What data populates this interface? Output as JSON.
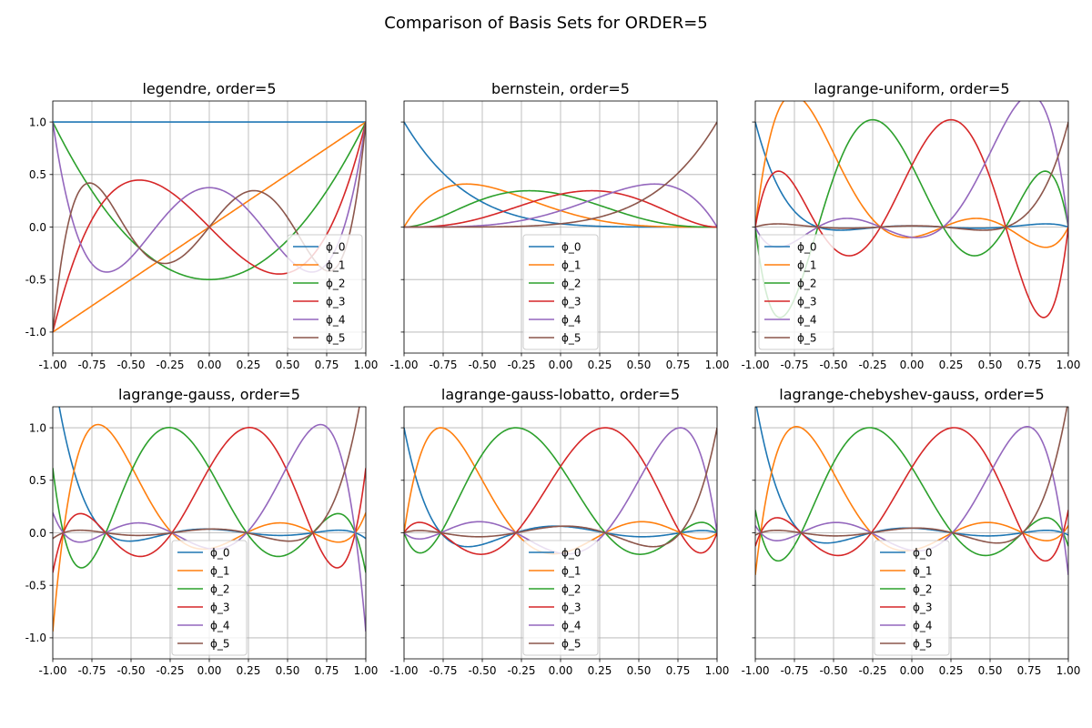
{
  "figure": {
    "suptitle": "Comparison of Basis Sets for ORDER=5"
  },
  "colors": [
    "#1f77b4",
    "#ff7f0e",
    "#2ca02c",
    "#d62728",
    "#9467bd",
    "#8c564b"
  ],
  "chart_data": [
    {
      "type": "line",
      "title": "legendre, order=5",
      "basis": "legendre",
      "xlim": [
        -1,
        1
      ],
      "ylim": [
        -1.2,
        1.2
      ],
      "xticks": [
        "-1.00",
        "-0.75",
        "-0.50",
        "-0.25",
        "0.00",
        "0.25",
        "0.50",
        "0.75",
        "1.00"
      ],
      "yticks": [
        "-1.0",
        "-0.5",
        "0.0",
        "0.5",
        "1.0"
      ],
      "show_yticklabels": true,
      "grid": true,
      "legend": "lower-right",
      "series_names": [
        "ϕ_0",
        "ϕ_1",
        "ϕ_2",
        "ϕ_3",
        "ϕ_4",
        "ϕ_5"
      ]
    },
    {
      "type": "line",
      "title": "bernstein, order=5",
      "basis": "bernstein",
      "xlim": [
        -1,
        1
      ],
      "ylim": [
        -1.2,
        1.2
      ],
      "xticks": [
        "-1.00",
        "-0.75",
        "-0.50",
        "-0.25",
        "0.00",
        "0.25",
        "0.50",
        "0.75",
        "1.00"
      ],
      "yticks": [
        "-1.0",
        "-0.5",
        "0.0",
        "0.5",
        "1.0"
      ],
      "show_yticklabels": false,
      "grid": true,
      "legend": "lower-center",
      "series_names": [
        "ϕ_0",
        "ϕ_1",
        "ϕ_2",
        "ϕ_3",
        "ϕ_4",
        "ϕ_5"
      ]
    },
    {
      "type": "line",
      "title": "lagrange-uniform, order=5",
      "basis": "lagrange",
      "nodes": [
        -1,
        -0.6,
        -0.2,
        0.2,
        0.6,
        1
      ],
      "xlim": [
        -1,
        1
      ],
      "ylim": [
        -1.2,
        1.2
      ],
      "xticks": [
        "-1.00",
        "-0.75",
        "-0.50",
        "-0.25",
        "0.00",
        "0.25",
        "0.50",
        "0.75",
        "1.00"
      ],
      "yticks": [
        "-1.0",
        "-0.5",
        "0.0",
        "0.5",
        "1.0"
      ],
      "show_yticklabels": false,
      "grid": true,
      "legend": "lower-left",
      "series_names": [
        "ϕ_0",
        "ϕ_1",
        "ϕ_2",
        "ϕ_3",
        "ϕ_4",
        "ϕ_5"
      ]
    },
    {
      "type": "line",
      "title": "lagrange-gauss, order=5",
      "basis": "lagrange",
      "nodes": [
        -0.93247,
        -0.66121,
        -0.23862,
        0.23862,
        0.66121,
        0.93247
      ],
      "xlim": [
        -1,
        1
      ],
      "ylim": [
        -1.2,
        1.2
      ],
      "xticks": [
        "-1.00",
        "-0.75",
        "-0.50",
        "-0.25",
        "0.00",
        "0.25",
        "0.50",
        "0.75",
        "1.00"
      ],
      "yticks": [
        "-1.0",
        "-0.5",
        "0.0",
        "0.5",
        "1.0"
      ],
      "show_yticklabels": true,
      "grid": true,
      "legend": "lower-center",
      "series_names": [
        "ϕ_0",
        "ϕ_1",
        "ϕ_2",
        "ϕ_3",
        "ϕ_4",
        "ϕ_5"
      ]
    },
    {
      "type": "line",
      "title": "lagrange-gauss-lobatto, order=5",
      "basis": "lagrange",
      "nodes": [
        -1,
        -0.76505,
        -0.28523,
        0.28523,
        0.76505,
        1
      ],
      "xlim": [
        -1,
        1
      ],
      "ylim": [
        -1.2,
        1.2
      ],
      "xticks": [
        "-1.00",
        "-0.75",
        "-0.50",
        "-0.25",
        "0.00",
        "0.25",
        "0.50",
        "0.75",
        "1.00"
      ],
      "yticks": [
        "-1.0",
        "-0.5",
        "0.0",
        "0.5",
        "1.0"
      ],
      "show_yticklabels": false,
      "grid": true,
      "legend": "lower-center",
      "series_names": [
        "ϕ_0",
        "ϕ_1",
        "ϕ_2",
        "ϕ_3",
        "ϕ_4",
        "ϕ_5"
      ]
    },
    {
      "type": "line",
      "title": "lagrange-chebyshev-gauss, order=5",
      "basis": "lagrange",
      "nodes": [
        -0.96593,
        -0.70711,
        -0.25882,
        0.25882,
        0.70711,
        0.96593
      ],
      "xlim": [
        -1,
        1
      ],
      "ylim": [
        -1.2,
        1.2
      ],
      "xticks": [
        "-1.00",
        "-0.75",
        "-0.50",
        "-0.25",
        "0.00",
        "0.25",
        "0.50",
        "0.75",
        "1.00"
      ],
      "yticks": [
        "-1.0",
        "-0.5",
        "0.0",
        "0.5",
        "1.0"
      ],
      "show_yticklabels": false,
      "grid": true,
      "legend": "lower-center",
      "series_names": [
        "ϕ_0",
        "ϕ_1",
        "ϕ_2",
        "ϕ_3",
        "ϕ_4",
        "ϕ_5"
      ]
    }
  ]
}
